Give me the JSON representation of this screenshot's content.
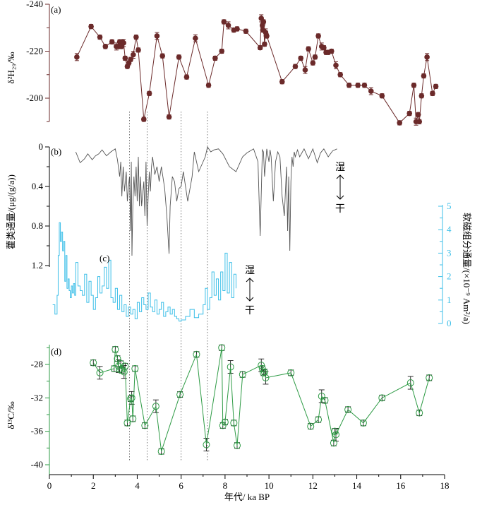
{
  "figure": {
    "x_axis": {
      "label": "年代/ ka BP",
      "ticks": [
        0,
        2,
        4,
        6,
        8,
        10,
        12,
        14,
        16,
        18
      ],
      "range": [
        0,
        18
      ]
    },
    "reference_lines_ka": [
      3.65,
      4.45,
      6.0,
      7.2
    ]
  },
  "chart_data": [
    {
      "panel": "(a)",
      "type": "line",
      "ylabel": "δ²H₂₉/‰",
      "y_ticks": [
        -240,
        -220,
        -200
      ],
      "ylim": [
        -190,
        -240
      ],
      "y_inverted": true,
      "color": "#6b2a2a",
      "series": [
        {
          "x": [
            1.25,
            1.9,
            2.3,
            2.55,
            2.85,
            3.05,
            3.15,
            3.2,
            3.28,
            3.33,
            3.38,
            3.45,
            3.55,
            3.62,
            3.7,
            3.82,
            3.95,
            4.05,
            4.3,
            4.55,
            4.9,
            5.15,
            5.45,
            5.9,
            6.25,
            6.65,
            7.25,
            7.55,
            7.85,
            7.95,
            8.15,
            8.4,
            8.55,
            8.95,
            9.6,
            9.65,
            9.7,
            9.72,
            9.75,
            9.8,
            9.85,
            9.9,
            10.6,
            11.2,
            11.45,
            11.65,
            11.8,
            12.0,
            12.1,
            12.25,
            12.4,
            12.5,
            12.6,
            12.7,
            12.85,
            13.05,
            13.25,
            13.65,
            14.05,
            14.35,
            14.65,
            15.15,
            15.95,
            16.4,
            16.6,
            16.7,
            16.8,
            16.85,
            16.95,
            17.05,
            17.2,
            17.45,
            17.6
          ],
          "y": [
            -217.5,
            -230.5,
            -226,
            -222,
            -224,
            -222,
            -222,
            -224,
            -222,
            -224,
            -223.5,
            -217,
            -213.5,
            -215,
            -216.5,
            -218.5,
            -226,
            -220.5,
            -191,
            -202,
            -226.5,
            -218,
            -192,
            -217.5,
            -209,
            -225.5,
            -205.5,
            -217,
            -220,
            -232.5,
            -231,
            -229,
            -229.5,
            -228.5,
            -221.5,
            -234,
            -231,
            -229,
            -232.5,
            -223,
            -228,
            -226.5,
            -207,
            -213.5,
            -217,
            -212,
            -221,
            -215,
            -217.5,
            -226.5,
            -222,
            -221.5,
            -219.5,
            -219.5,
            -220,
            -214,
            -210,
            -205.5,
            -205.5,
            -205.5,
            -203,
            -201,
            -189.5,
            -193.5,
            -205.5,
            -190,
            -193,
            -190,
            -201,
            -209.5,
            -217.5,
            -202,
            -205
          ]
        }
      ]
    },
    {
      "panel": "(b)",
      "type": "line",
      "ylabel": "藿类通量/(μg/(g/a))",
      "y_ticks": [
        "0",
        "0.4",
        "0.8",
        "1.2"
      ],
      "ylim": [
        0,
        1.2
      ],
      "y_inverted": true,
      "annotation": {
        "top": "湿",
        "bottom": "干"
      },
      "color": "#555555",
      "series": [
        {
          "x": [
            1.2,
            1.4,
            1.6,
            1.75,
            1.95,
            2.1,
            2.25,
            2.4,
            2.6,
            2.8,
            3.0,
            3.1,
            3.2,
            3.25,
            3.3,
            3.36,
            3.42,
            3.5,
            3.55,
            3.6,
            3.65,
            3.7,
            3.73,
            3.76,
            3.8,
            3.85,
            3.9,
            3.95,
            4.0,
            4.05,
            4.1,
            4.15,
            4.2,
            4.3,
            4.35,
            4.4,
            4.45,
            4.5,
            4.55,
            4.6,
            4.65,
            4.7,
            4.8,
            4.9,
            5.0,
            5.1,
            5.25,
            5.35,
            5.45,
            5.5,
            5.6,
            5.7,
            5.8,
            5.9,
            6.0,
            6.1,
            6.3,
            6.5,
            6.6,
            6.8,
            7.0,
            7.1,
            7.2,
            7.35,
            7.5,
            7.7,
            7.9,
            8.2,
            8.5,
            8.8,
            9.0,
            9.3,
            9.5,
            9.6,
            9.7,
            9.75,
            9.8,
            9.9,
            10.0,
            10.05,
            10.1,
            10.2,
            10.3,
            10.4,
            10.5,
            10.6,
            10.7,
            10.8,
            10.85,
            10.9,
            10.95,
            11.0,
            11.05,
            11.1,
            11.15,
            11.2,
            11.3,
            11.4,
            11.6,
            11.8,
            12.0,
            12.2,
            12.35,
            12.5,
            12.7,
            12.9,
            13.1
          ],
          "y": [
            0.05,
            0.16,
            0.12,
            0.07,
            0.13,
            0.09,
            0.07,
            0.03,
            0.09,
            0.05,
            0.02,
            0.13,
            0.3,
            0.15,
            0.5,
            0.2,
            0.45,
            0.25,
            0.55,
            0.4,
            0.3,
            0.85,
            0.15,
            1.1,
            0.6,
            0.3,
            0.5,
            0.2,
            0.55,
            0.1,
            0.6,
            0.3,
            0.6,
            0.35,
            0.7,
            0.15,
            0.8,
            0.5,
            0.25,
            0.45,
            0.2,
            0.1,
            0.28,
            0.2,
            0.35,
            0.2,
            0.42,
            0.7,
            1.08,
            0.6,
            0.3,
            0.35,
            0.55,
            0.42,
            0.4,
            0.25,
            0.55,
            0.3,
            0.05,
            0.25,
            0.15,
            0.1,
            0.0,
            0.05,
            0.03,
            0.02,
            0.07,
            0.2,
            0.25,
            0.1,
            0.06,
            0.02,
            0.15,
            0.9,
            0.03,
            0.05,
            0.3,
            0.02,
            0.15,
            0.03,
            0.1,
            0.55,
            0.15,
            0.05,
            0.1,
            0.5,
            0.7,
            0.2,
            0.85,
            0.3,
            1.05,
            0.35,
            0.1,
            0.2,
            0.05,
            0.1,
            0.03,
            0.1,
            0.02,
            0.12,
            0.02,
            0.16,
            0.06,
            0.02,
            0.1,
            0.04,
            0.02
          ]
        }
      ]
    },
    {
      "panel": "(c)",
      "type": "line",
      "step": true,
      "ylabel": "软磁组分通量/(×10⁻⁹ Am²/a)",
      "y_ticks": [
        "0",
        "1",
        "2",
        "3",
        "4",
        "5"
      ],
      "ylim": [
        0,
        5
      ],
      "annotation": {
        "top": "湿",
        "bottom": "干"
      },
      "color": "#3dbfe8",
      "series": [
        {
          "x": [
            0.15,
            0.25,
            0.35,
            0.4,
            0.45,
            0.5,
            0.55,
            0.6,
            0.65,
            0.7,
            0.75,
            0.8,
            0.85,
            0.9,
            0.95,
            1.0,
            1.05,
            1.1,
            1.15,
            1.2,
            1.3,
            1.4,
            1.5,
            1.6,
            1.7,
            1.8,
            1.9,
            2.0,
            2.1,
            2.2,
            2.3,
            2.4,
            2.5,
            2.6,
            2.7,
            2.8,
            2.9,
            3.0,
            3.1,
            3.2,
            3.3,
            3.4,
            3.5,
            3.6,
            3.7,
            3.8,
            3.9,
            4.0,
            4.1,
            4.2,
            4.3,
            4.4,
            4.5,
            4.6,
            4.7,
            4.8,
            4.9,
            5.0,
            5.1,
            5.2,
            5.3,
            5.4,
            5.5,
            5.6,
            5.7,
            5.8,
            5.9,
            6.0,
            6.2,
            6.4,
            6.6,
            6.8,
            7.0,
            7.1,
            7.2,
            7.3,
            7.4,
            7.5,
            7.6,
            7.7,
            7.8,
            7.9,
            8.0,
            8.1,
            8.2,
            8.3,
            8.4,
            8.5
          ],
          "y": [
            0.8,
            0.4,
            1.2,
            2.9,
            4.3,
            3.5,
            3.9,
            3.1,
            3.5,
            1.8,
            2.9,
            1.5,
            1.9,
            1.4,
            1.1,
            1.6,
            1.3,
            1.7,
            1.2,
            2.6,
            1.6,
            1.4,
            1.2,
            2.1,
            0.9,
            1.8,
            1.2,
            0.6,
            1.1,
            2.0,
            1.3,
            1.6,
            2.4,
            1.5,
            2.7,
            1.1,
            0.9,
            1.5,
            0.6,
            1.2,
            0.5,
            0.8,
            0.3,
            0.7,
            0.4,
            0.6,
            0.2,
            0.9,
            0.5,
            1.1,
            0.8,
            0.6,
            1.3,
            0.7,
            0.5,
            1.0,
            0.4,
            0.6,
            0.9,
            0.3,
            0.5,
            0.7,
            0.4,
            0.6,
            0.3,
            0.2,
            0.1,
            0.15,
            0.3,
            0.6,
            0.25,
            0.4,
            0.8,
            1.5,
            0.6,
            1.1,
            2.2,
            1.2,
            1.9,
            1.0,
            2.2,
            1.4,
            3.0,
            1.3,
            2.6,
            1.1,
            2.1,
            1.5
          ]
        }
      ]
    },
    {
      "panel": "(d)",
      "type": "line",
      "ylabel": "δ¹³C/‰",
      "y_ticks": [
        -28,
        -32,
        -36,
        -40
      ],
      "ylim": [
        -40,
        -25
      ],
      "color": "#2e9b45",
      "series": [
        {
          "x": [
            2.0,
            2.3,
            2.95,
            3.0,
            3.1,
            3.15,
            3.2,
            3.25,
            3.3,
            3.4,
            3.45,
            3.55,
            3.7,
            3.75,
            3.8,
            3.9,
            4.35,
            4.85,
            5.1,
            5.95,
            6.7,
            7.15,
            7.85,
            7.9,
            8.0,
            8.25,
            8.4,
            8.55,
            8.8,
            9.65,
            9.7,
            9.75,
            9.8,
            9.85,
            11.0,
            11.9,
            12.25,
            12.4,
            12.55,
            12.95,
            13.0,
            13.05,
            13.6,
            14.3,
            15.15,
            16.45,
            16.85,
            17.3
          ],
          "y": [
            -27.8,
            -29.0,
            -28.5,
            -26.2,
            -27.3,
            -28.2,
            -28.6,
            -27.9,
            -28.7,
            -28.9,
            -28.2,
            -35.0,
            -32.1,
            -32.0,
            -34.5,
            -28.5,
            -35.3,
            -33.0,
            -38.4,
            -31.6,
            -26.8,
            -37.6,
            -26.0,
            -35.3,
            -34.9,
            -28.3,
            -35.0,
            -37.7,
            -29.2,
            -28.1,
            -28.5,
            -29.0,
            -28.9,
            -29.6,
            -29.0,
            -35.4,
            -34.6,
            -31.8,
            -32.3,
            -37.4,
            -36.0,
            -36.4,
            -33.4,
            -35.0,
            -32.0,
            -30.2,
            -33.8,
            -29.6
          ]
        }
      ]
    }
  ]
}
